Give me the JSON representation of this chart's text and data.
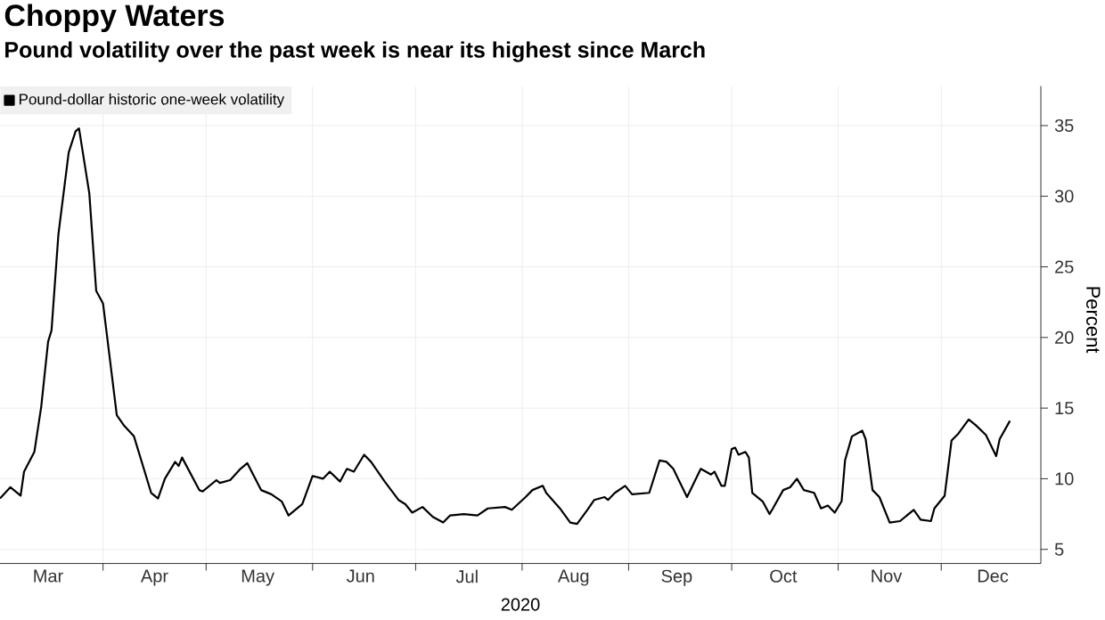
{
  "chart_data": {
    "type": "line",
    "title": "Choppy Waters",
    "subtitle": "Pound volatility over the past week is near its highest since March",
    "xlabel": "2020",
    "ylabel": "Percent",
    "x": [
      "2020-03-02",
      "2020-03-05",
      "2020-03-08",
      "2020-03-09",
      "2020-03-12",
      "2020-03-14",
      "2020-03-16",
      "2020-03-17",
      "2020-03-19",
      "2020-03-22",
      "2020-03-24",
      "2020-03-25",
      "2020-03-28",
      "2020-03-30",
      "2020-04-01",
      "2020-04-05",
      "2020-04-07",
      "2020-04-10",
      "2020-04-15",
      "2020-04-17",
      "2020-04-19",
      "2020-04-22",
      "2020-04-23",
      "2020-04-24",
      "2020-04-29",
      "2020-04-30",
      "2020-05-04",
      "2020-05-05",
      "2020-05-08",
      "2020-05-11",
      "2020-05-13",
      "2020-05-17",
      "2020-05-20",
      "2020-05-23",
      "2020-05-25",
      "2020-05-29",
      "2020-06-01",
      "2020-06-04",
      "2020-06-06",
      "2020-06-09",
      "2020-06-11",
      "2020-06-13",
      "2020-06-16",
      "2020-06-18",
      "2020-06-22",
      "2020-06-26",
      "2020-06-28",
      "2020-06-30",
      "2020-07-03",
      "2020-07-06",
      "2020-07-09",
      "2020-07-11",
      "2020-07-15",
      "2020-07-19",
      "2020-07-22",
      "2020-07-27",
      "2020-07-29",
      "2020-08-02",
      "2020-08-04",
      "2020-08-07",
      "2020-08-08",
      "2020-08-12",
      "2020-08-15",
      "2020-08-17",
      "2020-08-20",
      "2020-08-22",
      "2020-08-25",
      "2020-08-26",
      "2020-08-28",
      "2020-08-31",
      "2020-09-02",
      "2020-09-07",
      "2020-09-10",
      "2020-09-12",
      "2020-09-14",
      "2020-09-18",
      "2020-09-22",
      "2020-09-25",
      "2020-09-26",
      "2020-09-28",
      "2020-09-29",
      "2020-10-01",
      "2020-10-02",
      "2020-10-03",
      "2020-10-05",
      "2020-10-06",
      "2020-10-07",
      "2020-10-10",
      "2020-10-12",
      "2020-10-13",
      "2020-10-16",
      "2020-10-18",
      "2020-10-20",
      "2020-10-22",
      "2020-10-25",
      "2020-10-27",
      "2020-10-29",
      "2020-10-31",
      "2020-11-02",
      "2020-11-03",
      "2020-11-05",
      "2020-11-08",
      "2020-11-09",
      "2020-11-11",
      "2020-11-13",
      "2020-11-16",
      "2020-11-19",
      "2020-11-23",
      "2020-11-25",
      "2020-11-28",
      "2020-11-29",
      "2020-12-02",
      "2020-12-04",
      "2020-12-06",
      "2020-12-09",
      "2020-12-11",
      "2020-12-14",
      "2020-12-17",
      "2020-12-18",
      "2020-12-21"
    ],
    "series": [
      {
        "name": "Pound-dollar historic one-week volatility",
        "color": "#000000",
        "values": [
          8.6,
          9.4,
          8.8,
          10.5,
          11.9,
          15.1,
          19.7,
          20.5,
          27.3,
          33.1,
          34.6,
          34.8,
          30.2,
          23.3,
          22.4,
          14.5,
          13.8,
          13.0,
          9.0,
          8.6,
          10.0,
          11.2,
          10.9,
          11.5,
          9.2,
          9.1,
          9.9,
          9.7,
          9.9,
          10.7,
          11.1,
          9.2,
          8.9,
          8.4,
          7.4,
          8.2,
          10.2,
          10.0,
          10.5,
          9.8,
          10.7,
          10.5,
          11.7,
          11.2,
          9.8,
          8.5,
          8.2,
          7.6,
          8.0,
          7.3,
          6.9,
          7.4,
          7.5,
          7.4,
          7.9,
          8.0,
          7.8,
          8.7,
          9.2,
          9.5,
          9.0,
          7.9,
          6.9,
          6.8,
          7.8,
          8.5,
          8.7,
          8.5,
          9.0,
          9.5,
          8.9,
          9.0,
          11.3,
          11.2,
          10.7,
          8.7,
          10.7,
          10.3,
          10.5,
          9.5,
          9.5,
          12.1,
          12.2,
          11.7,
          11.9,
          11.5,
          9.0,
          8.4,
          7.5,
          7.9,
          9.2,
          9.4,
          10.0,
          9.2,
          9.0,
          7.9,
          8.1,
          7.6,
          8.4,
          11.3,
          13.0,
          13.4,
          12.8,
          9.2,
          8.7,
          6.9,
          7.0,
          7.8,
          7.1,
          7.0,
          7.9,
          8.8,
          12.7,
          13.2,
          14.2,
          13.8,
          13.1,
          11.6,
          12.8,
          14.1
        ]
      }
    ],
    "xlim": [
      "2020-03-02",
      "2020-12-30"
    ],
    "xticks": [
      {
        "value": "2020-04-01",
        "label": null
      },
      {
        "value": "2020-05-01",
        "label": null
      },
      {
        "value": "2020-06-01",
        "label": null
      },
      {
        "value": "2020-07-01",
        "label": null
      },
      {
        "value": "2020-08-01",
        "label": null
      },
      {
        "value": "2020-09-01",
        "label": null
      },
      {
        "value": "2020-10-01",
        "label": null
      },
      {
        "value": "2020-11-01",
        "label": null
      },
      {
        "value": "2020-12-01",
        "label": null
      },
      {
        "value": "2020-03-16",
        "label": "Mar"
      },
      {
        "value": "2020-04-16",
        "label": "Apr"
      },
      {
        "value": "2020-05-16",
        "label": "May"
      },
      {
        "value": "2020-06-15",
        "label": "Jun"
      },
      {
        "value": "2020-07-16",
        "label": "Jul"
      },
      {
        "value": "2020-08-16",
        "label": "Aug"
      },
      {
        "value": "2020-09-15",
        "label": "Sep"
      },
      {
        "value": "2020-10-16",
        "label": "Oct"
      },
      {
        "value": "2020-11-15",
        "label": "Nov"
      },
      {
        "value": "2020-12-16",
        "label": "Dec"
      }
    ],
    "ylim": [
      4,
      37.8
    ],
    "yticks": [
      5,
      10,
      15,
      20,
      25,
      30,
      35
    ],
    "grid": true,
    "legend": "top left",
    "marker": "none"
  }
}
